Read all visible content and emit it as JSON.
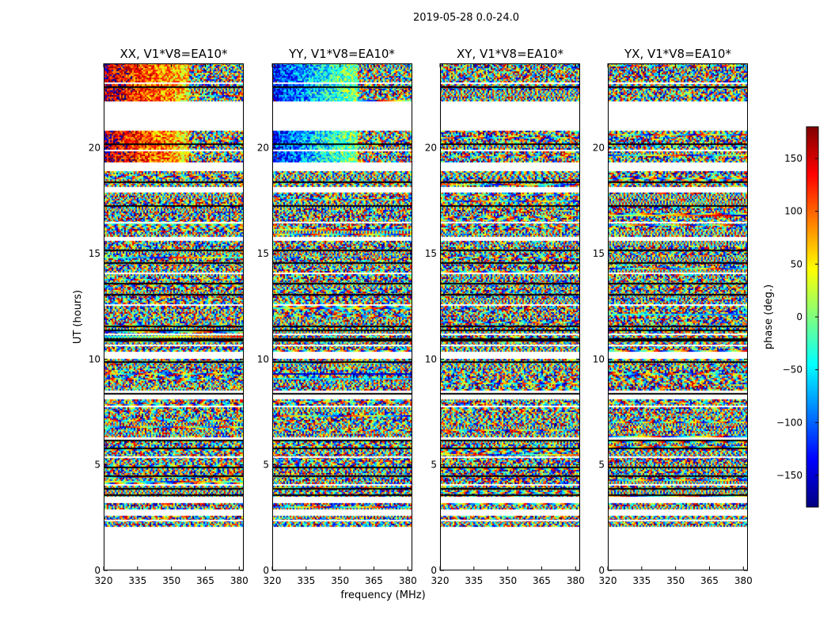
{
  "figure": {
    "suptitle": "2019-05-28 0.0-24.0",
    "xlabel": "frequency (MHz)",
    "ylabel": "UT (hours)"
  },
  "colorbar": {
    "label": "phase (deg.)",
    "range": [
      -180,
      180
    ],
    "ticks": [
      150,
      100,
      50,
      0,
      -50,
      -100,
      -150
    ],
    "tick_labels": [
      "150",
      "100",
      "50",
      "0",
      "−50",
      "−100",
      "−150"
    ],
    "colormap": [
      "#00007f",
      "#0000ff",
      "#007fff",
      "#00ffff",
      "#7fff7f",
      "#ffff00",
      "#ff7f00",
      "#ff0000",
      "#7f0000"
    ]
  },
  "chart_data": {
    "type": "heatmap",
    "x_range_mhz": [
      320,
      382
    ],
    "y_range_hours": [
      0,
      24
    ],
    "x_ticks": [
      320,
      335,
      350,
      365,
      380
    ],
    "y_ticks": [
      0,
      5,
      10,
      15,
      20
    ],
    "value": "visibility phase (deg.)",
    "panels": [
      {
        "title": "XX, V1*V8=EA10*"
      },
      {
        "title": "YY, V1*V8=EA10*"
      },
      {
        "title": "XY, V1*V8=EA10*"
      },
      {
        "title": "YX, V1*V8=EA10*"
      }
    ],
    "data_bands_ut": [
      [
        22.2,
        24.0
      ],
      [
        19.3,
        20.8
      ],
      [
        18.2,
        18.9
      ],
      [
        15.8,
        17.9
      ],
      [
        10.4,
        15.6
      ],
      [
        8.5,
        10.0
      ],
      [
        6.3,
        8.1
      ],
      [
        3.5,
        6.1
      ],
      [
        2.9,
        3.2
      ],
      [
        2.1,
        2.6
      ]
    ],
    "flagged_rows_ut": [
      23.1,
      22.9,
      20.2,
      19.9,
      18.4,
      17.3,
      16.5,
      15.2,
      14.6,
      14.1,
      13.6,
      13.1,
      12.6,
      11.6,
      11.4,
      11.2,
      11.0,
      10.9,
      10.7,
      9.9,
      8.4,
      7.8,
      6.2,
      5.8,
      5.4,
      4.9,
      4.5,
      4.1,
      3.9,
      3.6,
      2.4
    ]
  }
}
